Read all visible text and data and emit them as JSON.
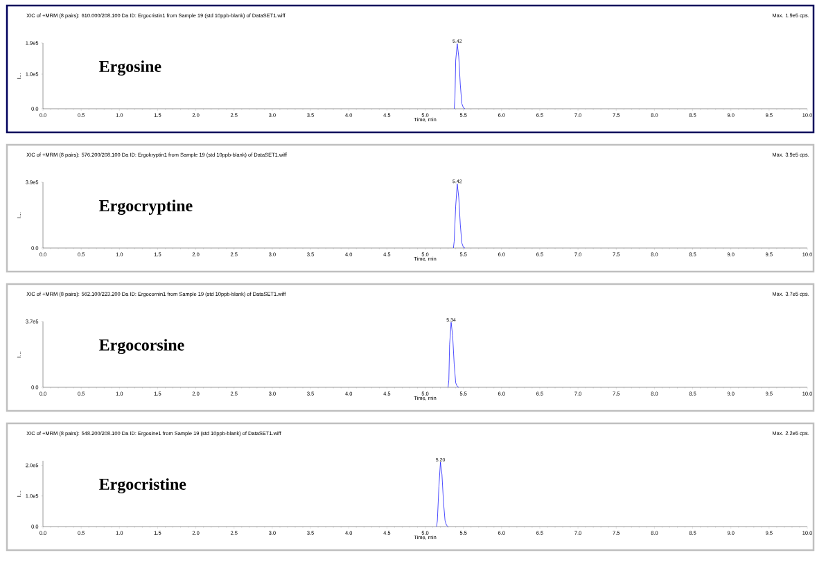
{
  "chart_data": [
    {
      "type": "line",
      "title": "XIC of +MRM (8 pairs): 610.000/208.100 Da ID: Ergocristin1 from Sample 19 (std 10ppb-blank) of DataSET1.wiff",
      "xlabel": "Time, min",
      "ylabel": "I…",
      "xlim": [
        0,
        10
      ],
      "ylim": [
        0,
        190000
      ],
      "xticks": [
        {
          "value": 0,
          "label": "0.0"
        },
        {
          "value": 0.5,
          "label": "0.5"
        },
        {
          "value": 1,
          "label": "1.0"
        },
        {
          "value": 1.5,
          "label": "1.5"
        },
        {
          "value": 2,
          "label": "2.0"
        },
        {
          "value": 2.5,
          "label": "2.5"
        },
        {
          "value": 3,
          "label": "3.0"
        },
        {
          "value": 3.5,
          "label": "3.5"
        },
        {
          "value": 4,
          "label": "4.0"
        },
        {
          "value": 4.5,
          "label": "4.5"
        },
        {
          "value": 5,
          "label": "5.0"
        },
        {
          "value": 5.5,
          "label": "5.5"
        },
        {
          "value": 6,
          "label": "6.0"
        },
        {
          "value": 6.5,
          "label": "6.5"
        },
        {
          "value": 7,
          "label": "7.0"
        },
        {
          "value": 7.5,
          "label": "7.5"
        },
        {
          "value": 8,
          "label": "8.0"
        },
        {
          "value": 8.5,
          "label": "8.5"
        },
        {
          "value": 9,
          "label": "9.0"
        },
        {
          "value": 9.5,
          "label": "9.5"
        },
        {
          "value": 10,
          "label": "10.0"
        }
      ],
      "yticks": [
        {
          "value": 0,
          "label": "0.0"
        },
        {
          "value": 100000,
          "label": "1.0e5"
        },
        {
          "value": 190000,
          "label": "1.9e5"
        }
      ],
      "annotations": [
        "Max. 1.9e5 cps.",
        "Ergosine",
        {
          "text": "5.42",
          "x": 5.42,
          "y": 188000
        }
      ],
      "series": [
        {
          "color": "#0000ff",
          "x": [
            5.38,
            5.39,
            5.4,
            5.42,
            5.44,
            5.46,
            5.48,
            5.5,
            5.52
          ],
          "values": [
            0,
            30000,
            140000,
            188000,
            150000,
            70000,
            15000,
            3000,
            0
          ]
        }
      ]
    },
    {
      "type": "line",
      "title": "XIC of +MRM (8 pairs): 576.200/208.100 Da ID: Ergokryptin1 from Sample 19 (std 10ppb-blank) of DataSET1.wiff",
      "xlabel": "Time, min",
      "ylabel": "I…",
      "xlim": [
        0,
        10
      ],
      "ylim": [
        0,
        390000
      ],
      "xticks": [
        {
          "value": 0,
          "label": "0.0"
        },
        {
          "value": 0.5,
          "label": "0.5"
        },
        {
          "value": 1,
          "label": "1.0"
        },
        {
          "value": 1.5,
          "label": "1.5"
        },
        {
          "value": 2,
          "label": "2.0"
        },
        {
          "value": 2.5,
          "label": "2.5"
        },
        {
          "value": 3,
          "label": "3.0"
        },
        {
          "value": 3.5,
          "label": "3.5"
        },
        {
          "value": 4,
          "label": "4.0"
        },
        {
          "value": 4.5,
          "label": "4.5"
        },
        {
          "value": 5,
          "label": "5.0"
        },
        {
          "value": 5.5,
          "label": "5.5"
        },
        {
          "value": 6,
          "label": "6.0"
        },
        {
          "value": 6.5,
          "label": "6.5"
        },
        {
          "value": 7,
          "label": "7.0"
        },
        {
          "value": 7.5,
          "label": "7.5"
        },
        {
          "value": 8,
          "label": "8.0"
        },
        {
          "value": 8.5,
          "label": "8.5"
        },
        {
          "value": 9,
          "label": "9.0"
        },
        {
          "value": 9.5,
          "label": "9.5"
        },
        {
          "value": 10,
          "label": "10.0"
        }
      ],
      "yticks": [
        {
          "value": 0,
          "label": "0.0"
        },
        {
          "value": 390000,
          "label": "3.9e5"
        }
      ],
      "annotations": [
        "Max. 3.9e5 cps.",
        "Ergocryptine",
        {
          "text": "5.42",
          "x": 5.42,
          "y": 380000
        }
      ],
      "series": [
        {
          "color": "#0000ff",
          "x": [
            5.37,
            5.38,
            5.4,
            5.42,
            5.44,
            5.46,
            5.48,
            5.5,
            5.52
          ],
          "values": [
            0,
            40000,
            250000,
            380000,
            300000,
            140000,
            30000,
            5000,
            0
          ]
        }
      ]
    },
    {
      "type": "line",
      "title": "XIC of +MRM (8 pairs): 562.100/223.200 Da ID: Ergocornin1 from Sample 19 (std 10ppb-blank) of DataSET1.wiff",
      "xlabel": "Time, min",
      "ylabel": "I…",
      "xlim": [
        0,
        10
      ],
      "ylim": [
        0,
        370000
      ],
      "xticks": [
        {
          "value": 0,
          "label": "0.0"
        },
        {
          "value": 0.5,
          "label": "0.5"
        },
        {
          "value": 1,
          "label": "1.0"
        },
        {
          "value": 1.5,
          "label": "1.5"
        },
        {
          "value": 2,
          "label": "2.0"
        },
        {
          "value": 2.5,
          "label": "2.5"
        },
        {
          "value": 3,
          "label": "3.0"
        },
        {
          "value": 3.5,
          "label": "3.5"
        },
        {
          "value": 4,
          "label": "4.0"
        },
        {
          "value": 4.5,
          "label": "4.5"
        },
        {
          "value": 5,
          "label": "5.0"
        },
        {
          "value": 5.5,
          "label": "5.5"
        },
        {
          "value": 6,
          "label": "6.0"
        },
        {
          "value": 6.5,
          "label": "6.5"
        },
        {
          "value": 7,
          "label": "7.0"
        },
        {
          "value": 7.5,
          "label": "7.5"
        },
        {
          "value": 8,
          "label": "8.0"
        },
        {
          "value": 8.5,
          "label": "8.5"
        },
        {
          "value": 9,
          "label": "9.0"
        },
        {
          "value": 9.5,
          "label": "9.5"
        },
        {
          "value": 10,
          "label": "10.0"
        }
      ],
      "yticks": [
        {
          "value": 0,
          "label": "0.0"
        },
        {
          "value": 370000,
          "label": "3.7e5"
        }
      ],
      "annotations": [
        "Max. 3.7e5 cps.",
        "Ergocorsine",
        {
          "text": "5.34",
          "x": 5.34,
          "y": 365000
        }
      ],
      "series": [
        {
          "color": "#0000ff",
          "x": [
            5.3,
            5.31,
            5.32,
            5.34,
            5.36,
            5.38,
            5.4,
            5.42,
            5.44
          ],
          "values": [
            0,
            40000,
            240000,
            365000,
            290000,
            130000,
            25000,
            5000,
            0
          ]
        }
      ]
    },
    {
      "type": "line",
      "title": "XIC of +MRM (8 pairs): 548.200/208.100 Da ID: Ergosine1 from Sample 19 (std 10ppb-blank) of DataSET1.wiff",
      "xlabel": "Time, min",
      "ylabel": "I…",
      "xlim": [
        0,
        10
      ],
      "ylim": [
        0,
        215000
      ],
      "xticks": [
        {
          "value": 0,
          "label": "0.0"
        },
        {
          "value": 0.5,
          "label": "0.5"
        },
        {
          "value": 1,
          "label": "1.0"
        },
        {
          "value": 1.5,
          "label": "1.5"
        },
        {
          "value": 2,
          "label": "2.0"
        },
        {
          "value": 2.5,
          "label": "2.5"
        },
        {
          "value": 3,
          "label": "3.0"
        },
        {
          "value": 3.5,
          "label": "3.5"
        },
        {
          "value": 4,
          "label": "4.0"
        },
        {
          "value": 4.5,
          "label": "4.5"
        },
        {
          "value": 5,
          "label": "5.0"
        },
        {
          "value": 5.5,
          "label": "5.5"
        },
        {
          "value": 6,
          "label": "6.0"
        },
        {
          "value": 6.5,
          "label": "6.5"
        },
        {
          "value": 7,
          "label": "7.0"
        },
        {
          "value": 7.5,
          "label": "7.5"
        },
        {
          "value": 8,
          "label": "8.0"
        },
        {
          "value": 8.5,
          "label": "8.5"
        },
        {
          "value": 9,
          "label": "9.0"
        },
        {
          "value": 9.5,
          "label": "9.5"
        },
        {
          "value": 10,
          "label": "10.0"
        }
      ],
      "yticks": [
        {
          "value": 0,
          "label": "0.0"
        },
        {
          "value": 100000,
          "label": "1.0e5"
        },
        {
          "value": 200000,
          "label": "2.0e5"
        }
      ],
      "annotations": [
        "Max. 2.2e5 cps.",
        "Ergocristine",
        {
          "text": "5.20",
          "x": 5.2,
          "y": 210000
        }
      ],
      "series": [
        {
          "color": "#0000ff",
          "x": [
            5.15,
            5.16,
            5.18,
            5.2,
            5.22,
            5.24,
            5.26,
            5.28,
            5.3
          ],
          "values": [
            0,
            20000,
            130000,
            210000,
            170000,
            80000,
            20000,
            4000,
            0
          ]
        }
      ]
    }
  ]
}
